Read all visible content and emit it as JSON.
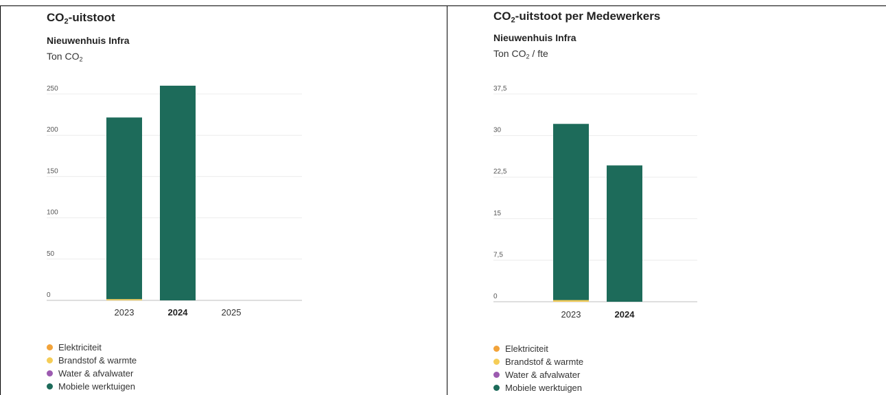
{
  "panels": [
    {
      "title_main": "CO",
      "title_sub": "2",
      "title_rest": "-uitstoot",
      "subtitle": "Nieuwenhuis Infra",
      "unit_main": "Ton CO",
      "unit_sub": "2",
      "unit_rest": ""
    },
    {
      "title_main": "CO",
      "title_sub": "2",
      "title_rest": "-uitstoot per Medewerkers",
      "subtitle": "Nieuwenhuis Infra",
      "unit_main": "Ton CO",
      "unit_sub": "2",
      "unit_rest": " / fte"
    }
  ],
  "legend": [
    {
      "label": "Elektriciteit",
      "color": "#f2a33a"
    },
    {
      "label": "Brandstof & warmte",
      "color": "#f5cd57"
    },
    {
      "label": "Water & afvalwater",
      "color": "#9c5bb0"
    },
    {
      "label": "Mobiele werktuigen",
      "color": "#1d6b5a"
    }
  ],
  "chart_data": [
    {
      "type": "bar",
      "stacked": true,
      "title": "CO2-uitstoot",
      "subtitle": "Nieuwenhuis Infra",
      "ylabel": "Ton CO2",
      "categories": [
        "2023",
        "2024",
        "2025"
      ],
      "bold_category": "2024",
      "ylim": [
        0,
        250
      ],
      "yticks": [
        "0",
        "50",
        "100",
        "150",
        "200",
        "250"
      ],
      "series": [
        {
          "name": "Elektriciteit",
          "values": [
            0,
            0,
            0
          ]
        },
        {
          "name": "Brandstof & warmte",
          "values": [
            1.5,
            0,
            0
          ]
        },
        {
          "name": "Water & afvalwater",
          "values": [
            0,
            0,
            0
          ]
        },
        {
          "name": "Mobiele werktuigen",
          "values": [
            220,
            260,
            0
          ]
        }
      ],
      "grid": true,
      "legend_position": "bottom-left"
    },
    {
      "type": "bar",
      "stacked": true,
      "title": "CO2-uitstoot per Medewerkers",
      "subtitle": "Nieuwenhuis Infra",
      "ylabel": "Ton CO2 / fte",
      "categories": [
        "2023",
        "2024"
      ],
      "bold_category": "2024",
      "ylim": [
        0,
        37.5
      ],
      "yticks": [
        "0",
        "7,5",
        "15",
        "22,5",
        "30",
        "37,5"
      ],
      "series": [
        {
          "name": "Elektriciteit",
          "values": [
            0,
            0
          ]
        },
        {
          "name": "Brandstof & warmte",
          "values": [
            0.3,
            0
          ]
        },
        {
          "name": "Water & afvalwater",
          "values": [
            0,
            0
          ]
        },
        {
          "name": "Mobiele werktuigen",
          "values": [
            31.8,
            24.6
          ]
        }
      ],
      "grid": true,
      "legend_position": "bottom-left"
    }
  ]
}
